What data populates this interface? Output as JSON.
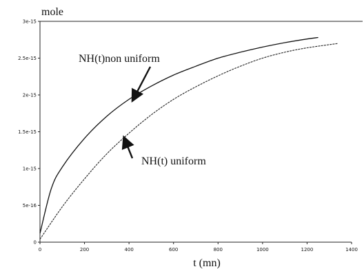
{
  "chart_data": {
    "type": "line",
    "xlabel": "t (mn)",
    "ylabel": "mole",
    "xlim": [
      0,
      1400
    ],
    "ylim": [
      0,
      3e-15
    ],
    "x_ticks": [
      0,
      200,
      400,
      600,
      800,
      1000,
      1200,
      1400
    ],
    "x_tick_labels": [
      "0",
      "200",
      "400",
      "600",
      "800",
      "1000",
      "1200",
      "1400"
    ],
    "y_ticks": [
      0,
      5e-16,
      1e-15,
      1.5e-15,
      2e-15,
      2.5e-15,
      3e-15
    ],
    "y_tick_labels": [
      "0",
      "5e-16",
      "1e-15",
      "1.5e-15",
      "2e-15",
      "2.5e-15",
      "3e-15"
    ],
    "grid": false,
    "series": [
      {
        "name": "NH(t)non uniform",
        "x": [
          0,
          50,
          100,
          200,
          300,
          400,
          500,
          600,
          700,
          800,
          900,
          1000,
          1100,
          1200,
          1250
        ],
        "y": [
          1.2e-16,
          7.2e-16,
          1.02e-15,
          1.41e-15,
          1.71e-15,
          1.94e-15,
          2.12e-15,
          2.27e-15,
          2.39e-15,
          2.5e-15,
          2.58e-15,
          2.65e-15,
          2.71e-15,
          2.76e-15,
          2.78e-15
        ]
      },
      {
        "name": "NH(t) uniform",
        "x": [
          0,
          100,
          200,
          300,
          400,
          500,
          600,
          700,
          800,
          900,
          1000,
          1100,
          1200,
          1340
        ],
        "y": [
          4e-17,
          4.8e-16,
          8.6e-16,
          1.2e-15,
          1.48e-15,
          1.73e-15,
          1.94e-15,
          2.11e-15,
          2.26e-15,
          2.39e-15,
          2.5e-15,
          2.58e-15,
          2.64e-15,
          2.7e-15
        ]
      }
    ],
    "annotations": [
      {
        "text": "NH(t)non uniform",
        "points_to_series": 0,
        "x": 430,
        "y": 2e-15
      },
      {
        "text": "NH(t) uniform",
        "points_to_series": 1,
        "x": 370,
        "y": 1.45e-15
      }
    ]
  }
}
